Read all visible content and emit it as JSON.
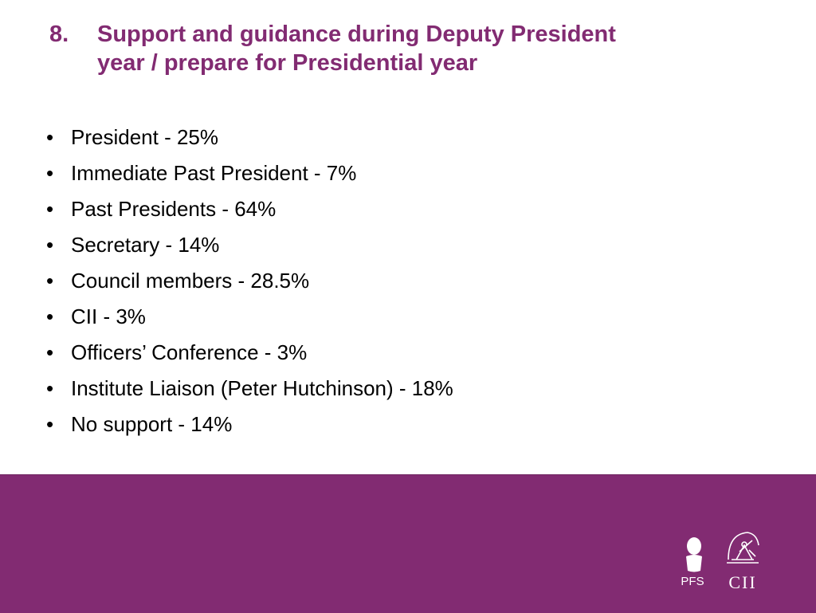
{
  "slide": {
    "title_number": "8.",
    "title_line1": "Support and guidance during Deputy President",
    "title_line2": "year / prepare for Presidential year",
    "bullet_symbol": "•",
    "items": [
      {
        "label": "President - 25%"
      },
      {
        "label": "Immediate Past President - 7%"
      },
      {
        "label": "Past Presidents - 64%"
      },
      {
        "label": "Secretary - 14%"
      },
      {
        "label": "Council members - 28.5%"
      },
      {
        "label": "CII - 3%"
      },
      {
        "label": "Officers’ Conference - 3%"
      },
      {
        "label": "Institute Liaison (Peter Hutchinson) - 18%"
      },
      {
        "label": "No support - 14%"
      }
    ]
  },
  "footer": {
    "background_color": "#822b72",
    "logos": [
      {
        "name": "pfs-logo",
        "text": "PFS"
      },
      {
        "name": "cii-logo",
        "text": "CII"
      }
    ]
  },
  "colors": {
    "title": "#822b72",
    "body_text": "#000000",
    "footer": "#822b72",
    "logo": "#ffffff"
  }
}
